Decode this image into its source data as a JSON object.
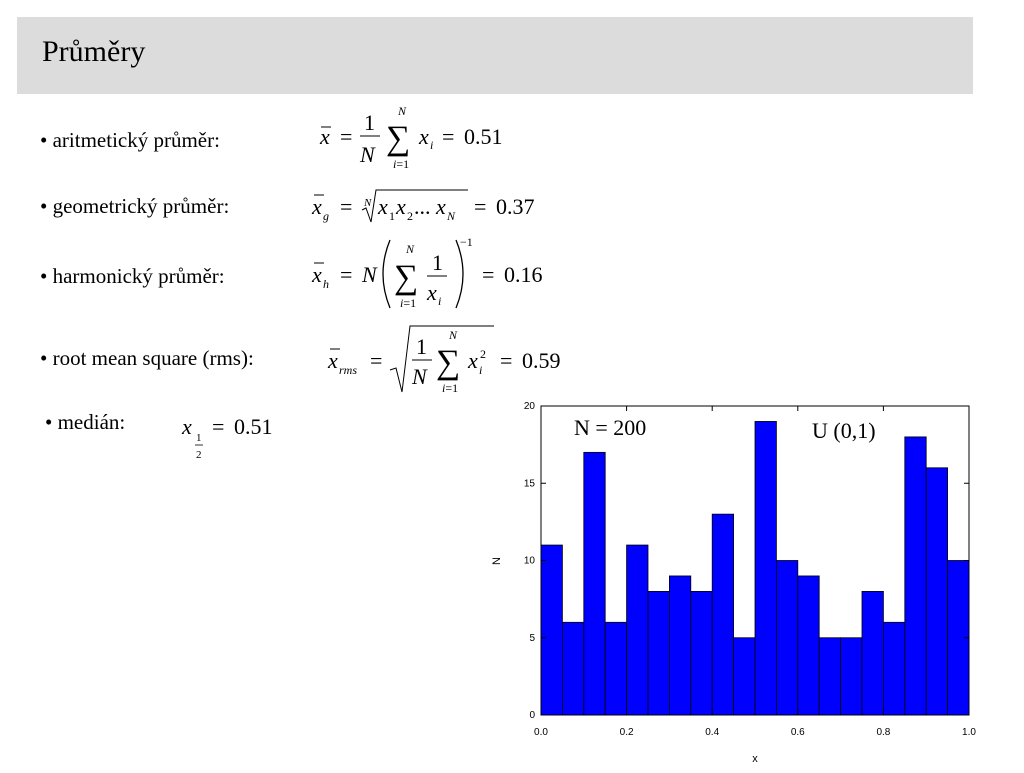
{
  "slide": {
    "title": "Průměry"
  },
  "bullets": [
    {
      "label": "• aritmetický průměr:",
      "result": "0.51"
    },
    {
      "label": "• geometrický průměr:",
      "result": "0.37"
    },
    {
      "label": "• harmonický průměr:",
      "result": "0.16"
    },
    {
      "label": "• root mean square (rms):",
      "result": "0.59"
    },
    {
      "label": "• medián:",
      "result": "0.51"
    }
  ],
  "chart_data": {
    "type": "bar",
    "bin_edges": [
      0.0,
      0.05,
      0.1,
      0.15,
      0.2,
      0.25,
      0.3,
      0.35,
      0.4,
      0.45,
      0.5,
      0.55,
      0.6,
      0.65,
      0.7,
      0.75,
      0.8,
      0.85,
      0.9,
      0.95,
      1.0
    ],
    "values": [
      11,
      6,
      17,
      6,
      11,
      8,
      9,
      8,
      13,
      5,
      19,
      10,
      9,
      5,
      5,
      8,
      6,
      18,
      16,
      10
    ],
    "xlabel": "x",
    "ylabel": "N",
    "xlim": [
      0.0,
      1.0
    ],
    "ylim": [
      0,
      20
    ],
    "x_ticks": [
      "0.0",
      "0.2",
      "0.4",
      "0.6",
      "0.8",
      "1.0"
    ],
    "y_ticks": [
      "0",
      "5",
      "10",
      "15",
      "20"
    ],
    "annotations": [
      "N = 200",
      "U (0,1)"
    ],
    "bar_color": "#0000ff",
    "grid": false
  }
}
